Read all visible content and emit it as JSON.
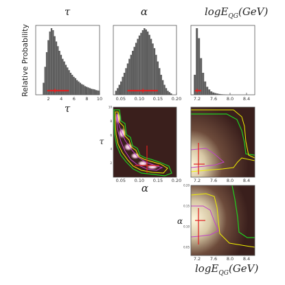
{
  "figure": {
    "y_label": "Relative Probability",
    "titles": {
      "tau": "τ",
      "alpha": "α",
      "logE": "logE",
      "logE_sub": "QG",
      "logE_unit": "(GeV)"
    },
    "x_labels": {
      "tau": "τ",
      "alpha": "α",
      "logE": "logE",
      "logE_sub": "QG",
      "logE_unit": "(GeV)"
    },
    "y_side_labels": {
      "tau": "τ",
      "alpha": "α"
    }
  },
  "colors": {
    "hist_fill": "#5e5e5e",
    "interval_bar": "#e02020",
    "dark_bg": "#3a1f1c",
    "glow": "#fff6dc",
    "contour_inner": "#c040c8",
    "contour_mid": "#f0f000",
    "contour_outer": "#20d020"
  },
  "chart_data": [
    {
      "type": "bar",
      "panel": "tau-marginal",
      "title": "τ",
      "xlabel": "τ",
      "ylabel": "Relative Probability",
      "xlim": [
        0,
        10
      ],
      "xticks": [
        "2",
        "4",
        "6",
        "8",
        "10"
      ],
      "bin_start": 1.1,
      "bin_width": 0.25,
      "values": [
        0.18,
        0.42,
        0.64,
        0.82,
        0.95,
        1.0,
        0.97,
        0.88,
        0.8,
        0.73,
        0.66,
        0.6,
        0.54,
        0.5,
        0.45,
        0.41,
        0.37,
        0.33,
        0.3,
        0.27,
        0.25,
        0.22,
        0.2,
        0.18,
        0.16,
        0.15,
        0.13,
        0.12,
        0.11,
        0.1,
        0.09,
        0.085,
        0.08,
        0.07,
        0.065,
        0.06
      ],
      "interval": {
        "low": 1.8,
        "high": 5.2,
        "marker": 3.0
      }
    },
    {
      "type": "bar",
      "panel": "alpha-marginal",
      "title": "α",
      "xlim": [
        0.03,
        0.2
      ],
      "xticks": [
        "0.05",
        "0.10",
        "0.15",
        "0.20"
      ],
      "bin_start": 0.035,
      "bin_width": 0.0045,
      "values": [
        0.06,
        0.1,
        0.15,
        0.2,
        0.27,
        0.33,
        0.4,
        0.47,
        0.54,
        0.6,
        0.66,
        0.72,
        0.78,
        0.84,
        0.89,
        0.93,
        0.97,
        1.0,
        0.98,
        0.95,
        0.9,
        0.84,
        0.77,
        0.7,
        0.6,
        0.5,
        0.4,
        0.3,
        0.22,
        0.15,
        0.1,
        0.06,
        0.04,
        0.02
      ],
      "interval": {
        "low": 0.068,
        "high": 0.15,
        "marker": 0.11
      }
    },
    {
      "type": "bar",
      "panel": "logE-marginal",
      "title": "logE_QG(GeV)",
      "xlim": [
        7.05,
        8.6
      ],
      "xticks": [
        "7.2",
        "7.6",
        "8.0",
        "8.4"
      ],
      "bin_start": 7.12,
      "bin_width": 0.05,
      "values": [
        0.3,
        1.0,
        0.85,
        0.55,
        0.33,
        0.2,
        0.12,
        0.08,
        0.05,
        0.035,
        0.025,
        0.018,
        0.012,
        0.008,
        0.006,
        0.004
      ],
      "interval": {
        "low": 7.15,
        "high": 7.3,
        "marker": 7.2
      }
    },
    {
      "type": "heatmap",
      "panel": "alpha-tau-joint",
      "xlabel": "α",
      "ylabel": "τ",
      "xlim": [
        0.03,
        0.2
      ],
      "ylim": [
        0,
        10
      ],
      "xticks": [
        "0.05",
        "0.10",
        "0.15",
        "0.20"
      ],
      "yticks": [
        "2",
        "4",
        "6",
        "8",
        "10"
      ],
      "best_fit": {
        "x": 0.11,
        "y": 2.5
      },
      "description_points": [
        [
          0.05,
          9.0
        ],
        [
          0.06,
          6.5
        ],
        [
          0.07,
          5.5
        ],
        [
          0.085,
          4.3
        ],
        [
          0.1,
          3.4
        ],
        [
          0.115,
          3.0
        ],
        [
          0.13,
          2.6
        ],
        [
          0.15,
          2.2
        ],
        [
          0.17,
          2.0
        ]
      ]
    },
    {
      "type": "heatmap",
      "panel": "logE-tau-joint",
      "xlim": [
        7.05,
        8.6
      ],
      "ylim": [
        0,
        10
      ],
      "yticks": [
        "2",
        "4",
        "6",
        "8",
        "10"
      ],
      "best_fit": {
        "x": 7.25,
        "y": 3.0
      }
    },
    {
      "type": "heatmap",
      "panel": "logE-alpha-joint",
      "xlabel": "logE_QG(GeV)",
      "ylabel": "α",
      "xlim": [
        7.05,
        8.6
      ],
      "ylim": [
        0.03,
        0.2
      ],
      "xticks": [
        "7.2",
        "7.6",
        "8.0",
        "8.4"
      ],
      "yticks": [
        "0.05",
        "0.10",
        "0.15",
        "0.20"
      ],
      "best_fit": {
        "x": 7.25,
        "y": 0.12
      }
    }
  ]
}
